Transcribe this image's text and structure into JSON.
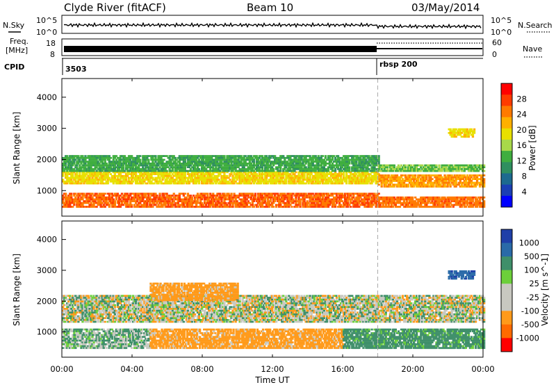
{
  "header": {
    "station": "Clyde River (fitACF)",
    "beam": "Beam 10",
    "date": "03/May/2014"
  },
  "top_panels": {
    "nsky_label": "N.Sky",
    "nsearch_label": "N.Search",
    "nsky_ticks": [
      "10^5",
      "10^0"
    ],
    "nsearch_ticks": [
      "10^5",
      "10^0"
    ],
    "freq_label": "Freq.",
    "freq_unit": "[MHz]",
    "freq_ticks": [
      "18",
      "8"
    ],
    "nave_label": "Nave",
    "nave_ticks": [
      "60",
      "0"
    ],
    "cpid_label": "CPID",
    "cpid_first": "3503",
    "cpid_second": "rbsp 200"
  },
  "power_colorbar": {
    "label": "Power [dB]",
    "ticks": [
      "28",
      "24",
      "20",
      "16",
      "12",
      "8",
      "4"
    ],
    "colors": [
      "#ff0000",
      "#ff3b00",
      "#ff7a00",
      "#ffb000",
      "#e8e000",
      "#a8d84a",
      "#3fae3f",
      "#2f8f5f",
      "#1d6a8f",
      "#1b3fb4",
      "#0000ff"
    ]
  },
  "velocity_colorbar": {
    "label": "Velocity [m s^-1]",
    "ticks": [
      "1000",
      "500",
      "100",
      "25",
      "-25",
      "-100",
      "-500",
      "-1000"
    ],
    "colors": [
      "#1f3fa8",
      "#2a6aa8",
      "#3f8f6a",
      "#6ccf3a",
      "#c8c8c0",
      "#c8c8c0",
      "#ff9a1a",
      "#ff6a00",
      "#ff0000"
    ]
  },
  "axes": {
    "xlabel": "Time UT",
    "xticks": [
      "00:00",
      "04:00",
      "08:00",
      "12:00",
      "16:00",
      "20:00",
      "00:00"
    ],
    "ylabel": "Slant Range [km]",
    "yticks": [
      "4000",
      "3000",
      "2000",
      "1000"
    ]
  },
  "chart_data": [
    {
      "type": "heatmap",
      "title": "Power",
      "xlabel": "Time UT",
      "ylabel": "Slant Range [km]",
      "xlim": [
        0,
        24
      ],
      "ylim": [
        180,
        4600
      ],
      "colorbar_label": "Power [dB]",
      "colorbar_range": [
        0,
        32
      ],
      "bands": [
        {
          "t0": 0,
          "t1": 18,
          "r0": 450,
          "r1": 900,
          "value": 27
        },
        {
          "t0": 0,
          "t1": 18,
          "r0": 1200,
          "r1": 1600,
          "value": 20
        },
        {
          "t0": 0,
          "t1": 18,
          "r0": 1600,
          "r1": 2100,
          "value": 12
        },
        {
          "t0": 18,
          "t1": 24,
          "r0": 450,
          "r1": 800,
          "value": 26
        },
        {
          "t0": 18,
          "t1": 24,
          "r0": 1100,
          "r1": 1500,
          "value": 24
        },
        {
          "t0": 18,
          "t1": 24,
          "r0": 1600,
          "r1": 1800,
          "value": 14
        },
        {
          "t0": 22,
          "t1": 23.5,
          "r0": 2700,
          "r1": 3000,
          "value": 20
        }
      ],
      "markers": {
        "vline_hour": 18
      }
    },
    {
      "type": "heatmap",
      "title": "Velocity",
      "xlabel": "Time UT",
      "ylabel": "Slant Range [km]",
      "xlim": [
        0,
        24
      ],
      "ylim": [
        180,
        4600
      ],
      "colorbar_label": "Velocity [m s^-1]",
      "colorbar_range": [
        -1000,
        1000
      ],
      "bands": [
        {
          "t0": 0,
          "t1": 5,
          "r0": 450,
          "r1": 1100,
          "value": 60
        },
        {
          "t0": 5,
          "t1": 16,
          "r0": 450,
          "r1": 1100,
          "value": -150
        },
        {
          "t0": 16,
          "t1": 24,
          "r0": 450,
          "r1": 1100,
          "value": 150
        },
        {
          "t0": 0,
          "t1": 24,
          "r0": 1300,
          "r1": 2200,
          "value": 0
        },
        {
          "t0": 5,
          "t1": 10,
          "r0": 2000,
          "r1": 2600,
          "value": -150
        },
        {
          "t0": 22,
          "t1": 23.5,
          "r0": 2700,
          "r1": 3000,
          "value": 600
        }
      ],
      "markers": {
        "vline_hour": 18
      }
    }
  ]
}
